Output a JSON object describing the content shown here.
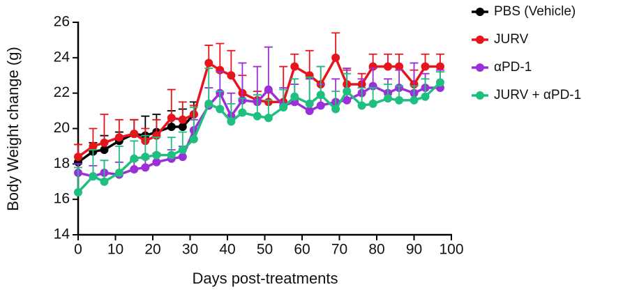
{
  "chart_data": {
    "type": "line",
    "x_label": "Days post-treatments",
    "y_label": "Body Weight change (g)",
    "x": [
      0,
      4,
      7,
      11,
      15,
      18,
      21,
      25,
      28,
      31,
      35,
      38,
      41,
      44,
      48,
      51,
      55,
      58,
      62,
      65,
      69,
      72,
      76,
      79,
      83,
      86,
      90,
      93,
      97
    ],
    "xlim": [
      0,
      100
    ],
    "xticks": [
      0,
      10,
      20,
      30,
      40,
      50,
      60,
      70,
      80,
      90,
      100
    ],
    "ylim": [
      14,
      26
    ],
    "yticks": [
      14,
      16,
      18,
      20,
      22,
      24,
      26
    ],
    "grid": false,
    "legend": "right",
    "series": [
      {
        "name": "PBS (Vehicle)",
        "color": "#000000",
        "values": [
          18.1,
          18.7,
          18.8,
          19.3,
          19.7,
          19.6,
          19.8,
          20.1,
          20.1,
          20.8,
          null,
          null,
          null,
          null,
          null,
          null,
          null,
          null,
          null,
          null,
          null,
          null,
          null,
          null,
          null,
          null,
          null,
          null,
          null
        ],
        "errors": [
          1.0,
          0.5,
          0.8,
          0.5,
          0.8,
          1.1,
          1.0,
          0.9,
          1.0,
          0.7,
          null,
          null,
          null,
          null,
          null,
          null,
          null,
          null,
          null,
          null,
          null,
          null,
          null,
          null,
          null,
          null,
          null,
          null,
          null
        ]
      },
      {
        "name": "JURV",
        "color": "#e8141b",
        "values": [
          18.4,
          19.0,
          19.2,
          19.5,
          19.7,
          19.3,
          19.6,
          20.6,
          20.5,
          20.8,
          23.7,
          23.3,
          23.0,
          22.0,
          21.6,
          21.5,
          21.5,
          23.5,
          23.0,
          22.5,
          24.0,
          22.5,
          22.5,
          23.5,
          23.5,
          23.5,
          22.5,
          23.5,
          23.5
        ],
        "errors": [
          0.7,
          1.0,
          1.6,
          1.0,
          0.8,
          0.7,
          0.9,
          1.6,
          1.0,
          0.5,
          1.0,
          1.5,
          1.4,
          1.0,
          0.5,
          0.6,
          2.0,
          0.7,
          1.4,
          1.0,
          1.4,
          0.8,
          0.6,
          0.7,
          0.7,
          0.7,
          0.8,
          0.7,
          0.7
        ]
      },
      {
        "name": "αPD-1",
        "color": "#9b30d9",
        "values": [
          17.5,
          17.3,
          17.5,
          17.4,
          17.7,
          17.8,
          18.1,
          18.3,
          18.4,
          19.9,
          21.3,
          22.0,
          20.7,
          21.6,
          21.5,
          22.2,
          21.3,
          21.5,
          21.0,
          21.3,
          21.5,
          21.6,
          22.0,
          22.4,
          22.0,
          22.3,
          22.0,
          22.3,
          22.3
        ],
        "errors": [
          0.5,
          0.6,
          0.7,
          0.7,
          0.5,
          0.5,
          0.5,
          0.5,
          0.6,
          0.6,
          1.0,
          1.2,
          1.3,
          2.1,
          2.0,
          2.4,
          1.0,
          1.0,
          1.8,
          1.2,
          1.3,
          1.8,
          0.8,
          1.0,
          0.8,
          1.0,
          1.7,
          0.8,
          1.0
        ]
      },
      {
        "name": "JURV + αPD-1",
        "color": "#1fbf7f",
        "values": [
          16.4,
          17.3,
          17.0,
          17.5,
          18.3,
          18.4,
          18.5,
          18.5,
          18.8,
          19.4,
          21.4,
          21.1,
          20.4,
          20.9,
          20.7,
          20.6,
          21.2,
          21.8,
          21.4,
          21.9,
          21.1,
          22.1,
          21.3,
          21.4,
          21.7,
          21.6,
          21.6,
          21.8,
          22.6
        ],
        "errors": [
          1.4,
          1.5,
          1.2,
          1.5,
          1.0,
          1.2,
          1.0,
          1.0,
          1.0,
          1.8,
          2.0,
          1.0,
          1.0,
          0.8,
          1.2,
          1.0,
          1.0,
          1.0,
          1.5,
          1.6,
          1.0,
          1.0,
          1.0,
          0.9,
          0.8,
          0.8,
          0.8,
          1.0,
          0.6
        ]
      }
    ]
  }
}
